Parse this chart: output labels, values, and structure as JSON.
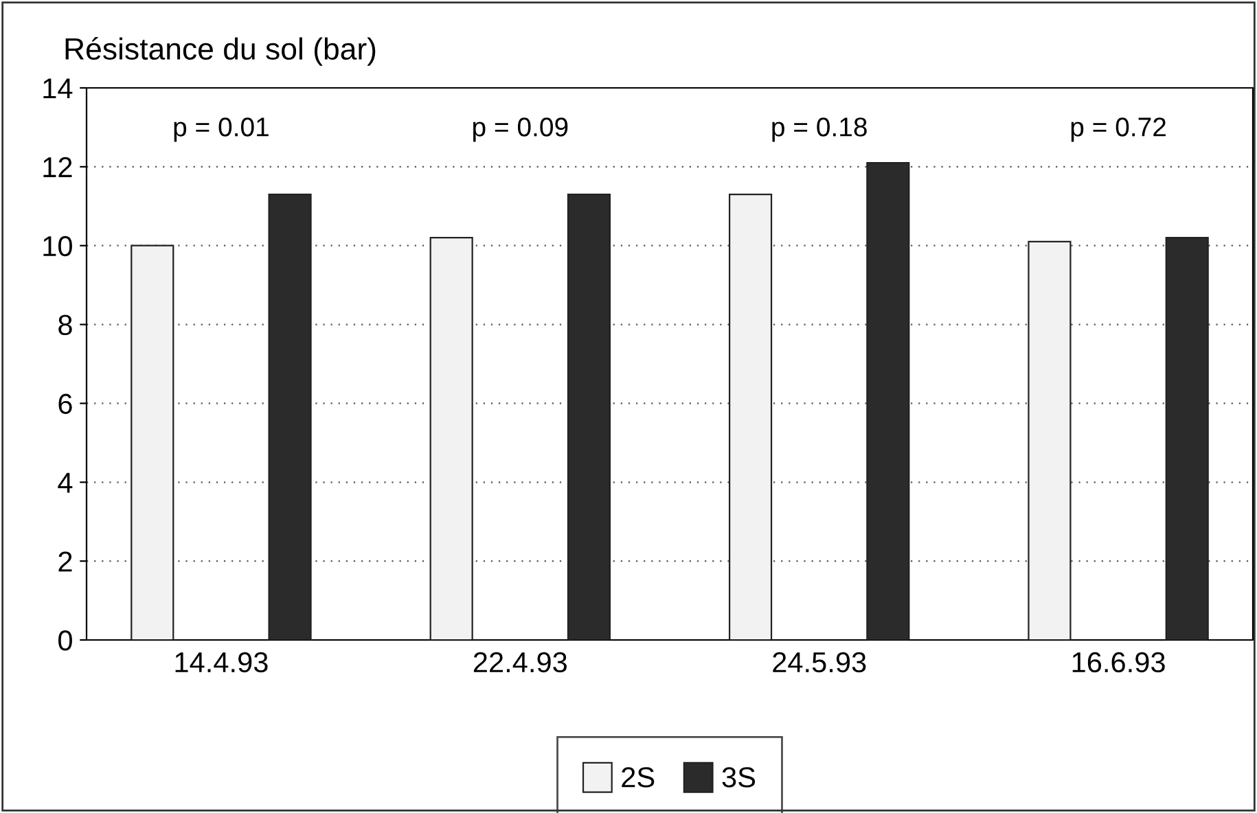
{
  "chart_data": {
    "type": "bar",
    "ylabel": "Résistance du sol (bar)",
    "categories": [
      "14.4.93",
      "22.4.93",
      "24.5.93",
      "16.6.93"
    ],
    "series": [
      {
        "name": "2S",
        "color": "#f2f2f2",
        "values": [
          10.0,
          10.2,
          11.3,
          10.1
        ]
      },
      {
        "name": "3S",
        "color": "#2b2b2b",
        "values": [
          11.3,
          11.3,
          12.1,
          10.2
        ]
      }
    ],
    "ylim": [
      0,
      14
    ],
    "yticks": [
      0,
      2,
      4,
      6,
      8,
      10,
      12,
      14
    ],
    "grid": "y",
    "legend": "bottom",
    "annotations": [
      "p = 0.01",
      "p = 0.09",
      "p = 0.18",
      "p = 0.72"
    ]
  }
}
